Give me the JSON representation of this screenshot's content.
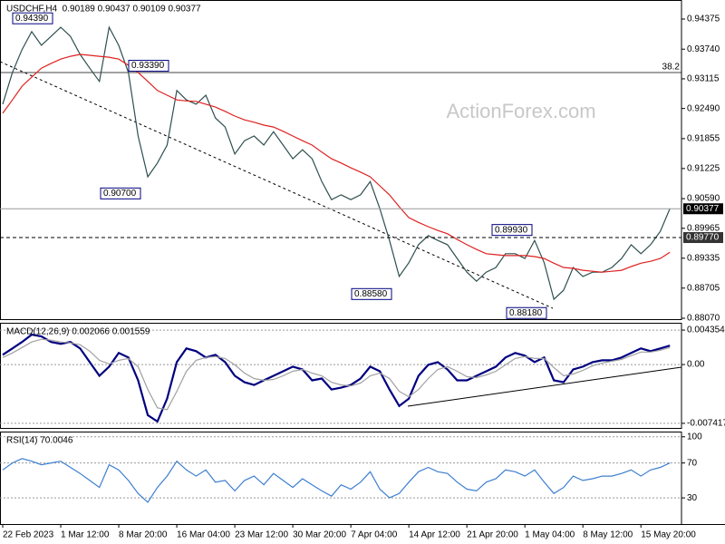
{
  "chart_data": [
    {
      "type": "line",
      "title": "USDCHF,H4  0.90189 0.90437 0.90109 0.90377",
      "watermark": "ActionForex.com",
      "level_label": "38.2",
      "categories": [
        "22 Feb 2023",
        null,
        null,
        null,
        null,
        null,
        "1 Mar 12:00",
        null,
        null,
        null,
        null,
        null,
        "8 Mar 20:00",
        null,
        null,
        null,
        null,
        null,
        "16 Mar 04:00",
        null,
        null,
        null,
        null,
        null,
        "23 Mar 12:00",
        null,
        null,
        null,
        null,
        null,
        "30 Mar 20:00",
        null,
        null,
        null,
        null,
        null,
        "7 Apr 04:00",
        null,
        null,
        null,
        null,
        null,
        "14 Apr 12:00",
        null,
        null,
        null,
        null,
        null,
        "21 Apr 20:00",
        null,
        null,
        null,
        null,
        null,
        "1 May 04:00",
        null,
        null,
        null,
        null,
        null,
        "8 May 12:00",
        null,
        null,
        null,
        null,
        null,
        "15 May 20:00",
        null,
        null,
        null
      ],
      "series": [
        {
          "color": "#2f4f4f",
          "values": [
            0.9258,
            0.9325,
            0.9373,
            0.9411,
            0.9382,
            0.9401,
            0.942,
            0.9401,
            0.9363,
            0.9334,
            0.9306,
            0.942,
            0.9382,
            0.9325,
            0.9191,
            0.9105,
            0.9134,
            0.9172,
            0.9287,
            0.9267,
            0.9258,
            0.9277,
            0.9229,
            0.921,
            0.9153,
            0.9181,
            0.9191,
            0.9172,
            0.92,
            0.9172,
            0.9143,
            0.9162,
            0.9143,
            0.9095,
            0.9057,
            0.9067,
            0.9057,
            0.9067,
            0.9095,
            0.9038,
            0.8971,
            0.8895,
            0.8924,
            0.8962,
            0.8981,
            0.8971,
            0.8962,
            0.8933,
            0.8904,
            0.8885,
            0.8904,
            0.8914,
            0.8943,
            0.8943,
            0.8933,
            0.8971,
            0.8924,
            0.8847,
            0.8866,
            0.8914,
            0.8895,
            0.8904,
            0.8904,
            0.8914,
            0.8933,
            0.8962,
            0.8943,
            0.8962,
            0.899,
            0.9038
          ]
        },
        {
          "color": "#e02020",
          "values": [
            0.9239,
            0.9267,
            0.9296,
            0.9315,
            0.9334,
            0.9344,
            0.9353,
            0.9359,
            0.9363,
            0.9361,
            0.9359,
            0.9357,
            0.9353,
            0.934,
            0.9325,
            0.9306,
            0.9287,
            0.9277,
            0.9267,
            0.9265,
            0.9264,
            0.9258,
            0.9252,
            0.9243,
            0.9233,
            0.9225,
            0.922,
            0.9214,
            0.921,
            0.9201,
            0.9191,
            0.9181,
            0.9172,
            0.9157,
            0.9143,
            0.9134,
            0.9124,
            0.9115,
            0.9105,
            0.9086,
            0.9067,
            0.9042,
            0.9019,
            0.9009,
            0.9,
            0.8992,
            0.8985,
            0.8973,
            0.8962,
            0.8952,
            0.8943,
            0.8941,
            0.8939,
            0.8939,
            0.8939,
            0.8937,
            0.8933,
            0.8923,
            0.8914,
            0.8912,
            0.8908,
            0.8906,
            0.8904,
            0.8906,
            0.8908,
            0.8916,
            0.8923,
            0.8927,
            0.8933,
            0.8946
          ]
        }
      ],
      "ylim": [
        0.88051,
        0.94776
      ],
      "yticks": [
        0.94375,
        {
          "value": 0.9374,
          "label": "0.93740"
        },
        0.93115,
        {
          "value": 0.9249,
          "label": "0.92490"
        },
        0.91855,
        0.91225,
        {
          "value": 0.9059,
          "label": "0.90590"
        },
        0.89965,
        0.89335,
        0.88705,
        {
          "value": 0.8807,
          "label": "0.88070"
        }
      ],
      "markers": [
        {
          "value": 0.90377,
          "label": "0.90377"
        },
        {
          "value": 0.8977,
          "label": "0.89770"
        }
      ],
      "annotations": [
        {
          "value": 0.9439,
          "label": "0.94390"
        },
        {
          "value": 0.9339,
          "label": "0.93390"
        },
        {
          "value": 0.907,
          "label": "0.90700"
        },
        {
          "value": 0.8858,
          "label": "0.88580"
        },
        {
          "value": 0.8993,
          "label": "0.89930"
        },
        {
          "value": 0.8818,
          "label": "0.88180"
        }
      ]
    },
    {
      "type": "line",
      "title": "MACD(12,26,9) 0.002066 0.001559",
      "series": [
        {
          "color": "#000080",
          "values": [
            0.001235,
            0.002043,
            0.00285,
            0.003774,
            0.003543,
            0.00285,
            0.00262,
            0.00285,
            0.002043,
            0.000312,
            -0.001419,
            -0.000265,
            0.001466,
            0.000889,
            -0.001996,
            -0.006382,
            -0.007189,
            -0.004304,
            0.000312,
            0.002043,
            0.001696,
            0.000889,
            0.001235,
            0.000312,
            -0.001419,
            -0.002227,
            -0.002573,
            -0.001996,
            -0.001419,
            -0.000842,
            -0.000265,
            -0.000612,
            -0.001996,
            -0.001766,
            -0.00315,
            -0.00292,
            -0.002573,
            -0.001766,
            -0.000265,
            -0.000842,
            -0.00315,
            -0.005228,
            -0.004304,
            -0.001419,
            -3.5e-05,
            0.000312,
            -0.000612,
            -0.001996,
            -0.001996,
            -0.001419,
            -0.000842,
            -0.000265,
            0.000889,
            0.001466,
            0.001119,
            0.000312,
            0.000889,
            -0.001996,
            -0.002227,
            -0.000612,
            -0.000265,
            0.000312,
            0.000542,
            0.000542,
            0.000889,
            0.001466,
            0.002043,
            0.001696,
            0.002043,
            0.002389
          ]
        },
        {
          "color": "#a0a0a0",
          "values": [
            0.000889,
            0.001466,
            0.002158,
            0.00285,
            0.003197,
            0.003081,
            0.00285,
            0.002735,
            0.002504,
            0.001696,
            0.000542,
            8.1e-05,
            0.000542,
            0.000773,
            -0.000265,
            -0.00315,
            -0.005458,
            -0.005689,
            -0.003381,
            -0.000842,
            0.000542,
            0.000889,
            0.001004,
            0.000773,
            -3.5e-05,
            -0.001073,
            -0.001766,
            -0.001996,
            -0.001881,
            -0.001419,
            -0.000842,
            -0.000612,
            -0.001073,
            -0.001419,
            -0.002227,
            -0.002573,
            -0.002689,
            -0.002343,
            -0.001419,
            -0.001073,
            -0.001766,
            -0.003381,
            -0.004074,
            -0.00315,
            -0.001766,
            -0.000612,
            -0.000265,
            -0.000842,
            -0.001535,
            -0.00165,
            -0.001304,
            -0.000842,
            -3.5e-05,
            0.000773,
            0.001004,
            0.000773,
            0.000773,
            -0.000381,
            -0.001419,
            -0.001189,
            -0.000727,
            -0.00015,
            0.000196,
            0.000427,
            0.000658,
            0.001119,
            0.001581,
            0.001581,
            0.001812,
            0.002158
          ]
        }
      ],
      "ylim": [
        -0.008,
        0.005277
      ],
      "yticks": [
        0.004354,
        {
          "value": 0,
          "label": "0.00"
        },
        -0.007417
      ]
    },
    {
      "type": "line",
      "title": "RSI(14) 70.0046",
      "series": [
        {
          "color": "#3d7fd0",
          "values": [
            62,
            70,
            75,
            72,
            68,
            70,
            72,
            65,
            58,
            50,
            42,
            68,
            62,
            50,
            35,
            25,
            42,
            55,
            72,
            62,
            55,
            62,
            48,
            50,
            38,
            50,
            55,
            45,
            58,
            50,
            42,
            52,
            45,
            38,
            32,
            45,
            40,
            48,
            60,
            40,
            30,
            35,
            48,
            60,
            65,
            60,
            58,
            48,
            40,
            38,
            48,
            52,
            62,
            60,
            55,
            62,
            48,
            35,
            42,
            55,
            50,
            52,
            55,
            55,
            58,
            62,
            55,
            62,
            65,
            70
          ]
        }
      ],
      "ylim": [
        0,
        106
      ],
      "yticks": [
        100,
        70,
        30
      ]
    }
  ]
}
